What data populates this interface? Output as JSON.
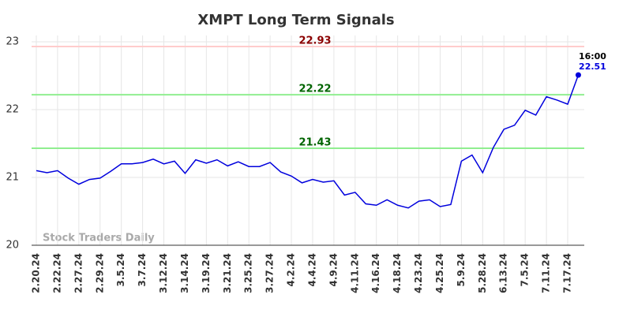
{
  "chart_data": {
    "type": "line",
    "title": "XMPT Long Term Signals",
    "categories": [
      "2.20.24",
      null,
      "2.22.24",
      null,
      "2.27.24",
      null,
      "2.29.24",
      null,
      "3.5.24",
      null,
      "3.7.24",
      null,
      "3.12.24",
      null,
      "3.14.24",
      null,
      "3.19.24",
      null,
      "3.21.24",
      null,
      "3.25.24",
      null,
      "3.27.24",
      null,
      "4.2.24",
      null,
      "4.4.24",
      null,
      "4.9.24",
      null,
      "4.11.24",
      null,
      "4.16.24",
      null,
      "4.18.24",
      null,
      "4.23.24",
      null,
      "4.25.24",
      null,
      "5.9.24",
      null,
      "5.28.24",
      null,
      "6.13.24",
      null,
      "7.5.24",
      null,
      "7.11.24",
      null,
      "7.17.24",
      null
    ],
    "series": [
      {
        "name": "XMPT",
        "color": "#0000dd",
        "values": [
          21.1,
          21.07,
          21.1,
          20.99,
          20.9,
          20.97,
          20.99,
          21.09,
          21.2,
          21.2,
          21.22,
          21.27,
          21.2,
          21.24,
          21.06,
          21.26,
          21.21,
          21.26,
          21.17,
          21.23,
          21.16,
          21.16,
          21.22,
          21.08,
          21.02,
          20.92,
          20.97,
          20.93,
          20.95,
          20.74,
          20.78,
          20.61,
          20.59,
          20.67,
          20.59,
          20.55,
          20.65,
          20.67,
          20.57,
          20.6,
          21.24,
          21.33,
          21.07,
          21.44,
          21.71,
          21.77,
          21.99,
          21.92,
          22.19,
          22.14,
          22.08,
          22.51
        ]
      }
    ],
    "hlines": [
      {
        "value": 22.93,
        "color": "#ffcccc",
        "label_color": "#8b0000"
      },
      {
        "value": 22.22,
        "color": "#90ee90",
        "label_color": "#006400"
      },
      {
        "value": 21.43,
        "color": "#90ee90",
        "label_color": "#006400"
      }
    ],
    "last_time": "16:00",
    "watermark": "Stock Traders Daily",
    "ylim": [
      20,
      23
    ],
    "yticks": [
      20,
      21,
      22,
      23
    ],
    "grid": true
  }
}
